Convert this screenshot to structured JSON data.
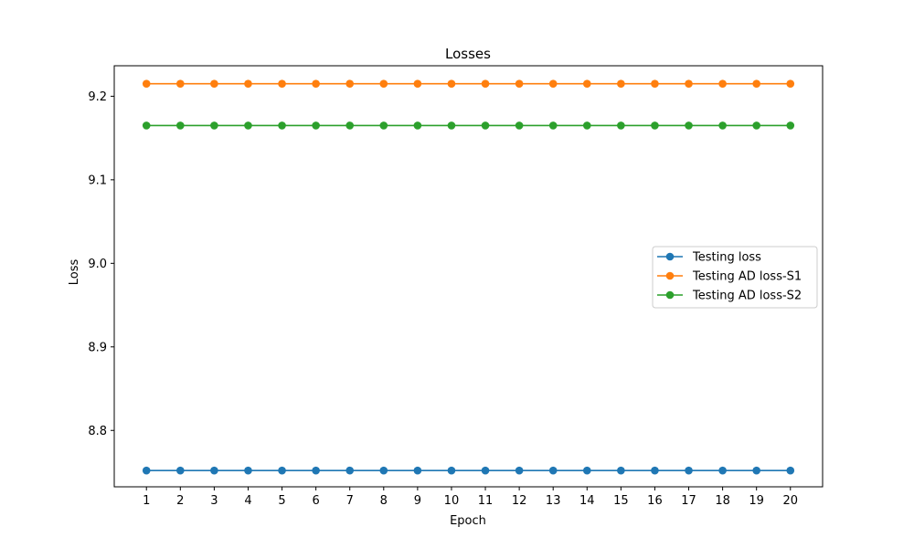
{
  "chart_data": {
    "type": "line",
    "title": "Losses",
    "xlabel": "Epoch",
    "ylabel": "Loss",
    "x": [
      1,
      2,
      3,
      4,
      5,
      6,
      7,
      8,
      9,
      10,
      11,
      12,
      13,
      14,
      15,
      16,
      17,
      18,
      19,
      20
    ],
    "xlim": [
      0.05,
      20.95
    ],
    "ylim": [
      8.7325,
      9.2365
    ],
    "yticks": [
      8.8,
      8.9,
      9.0,
      9.1,
      9.2
    ],
    "ytick_labels": [
      "8.8",
      "8.9",
      "9.0",
      "9.1",
      "9.2"
    ],
    "grid": false,
    "legend_position": "center-right",
    "series": [
      {
        "name": "Testing loss",
        "color": "#1f77b4",
        "marker": "circle",
        "values": [
          8.752,
          8.752,
          8.752,
          8.752,
          8.752,
          8.752,
          8.752,
          8.752,
          8.752,
          8.752,
          8.752,
          8.752,
          8.752,
          8.752,
          8.752,
          8.752,
          8.752,
          8.752,
          8.752,
          8.752
        ]
      },
      {
        "name": "Testing AD loss-S1",
        "color": "#ff7f0e",
        "marker": "circle",
        "values": [
          9.215,
          9.215,
          9.215,
          9.215,
          9.215,
          9.215,
          9.215,
          9.215,
          9.215,
          9.215,
          9.215,
          9.215,
          9.215,
          9.215,
          9.215,
          9.215,
          9.215,
          9.215,
          9.215,
          9.215
        ]
      },
      {
        "name": "Testing AD loss-S2",
        "color": "#2ca02c",
        "marker": "circle",
        "values": [
          9.165,
          9.165,
          9.165,
          9.165,
          9.165,
          9.165,
          9.165,
          9.165,
          9.165,
          9.165,
          9.165,
          9.165,
          9.165,
          9.165,
          9.165,
          9.165,
          9.165,
          9.165,
          9.165,
          9.165
        ]
      }
    ]
  }
}
